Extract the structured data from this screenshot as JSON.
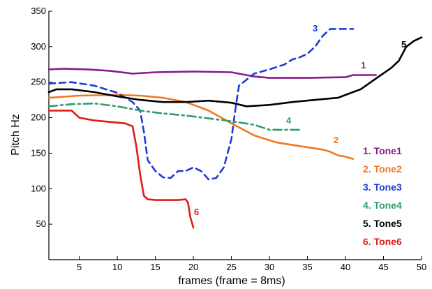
{
  "chart_data": {
    "type": "line",
    "xlabel": "frames (frame = 8ms)",
    "ylabel": "Pitch Hz",
    "xlim": [
      1,
      50
    ],
    "ylim": [
      0,
      350
    ],
    "x_ticks": [
      5,
      10,
      15,
      20,
      25,
      30,
      35,
      40,
      45,
      50
    ],
    "y_ticks": [
      50,
      100,
      150,
      200,
      250,
      300,
      350
    ],
    "legend_position": "right",
    "grid": false,
    "series": [
      {
        "name": "1. Tone1",
        "label": "1",
        "color": "#8B1A89",
        "dash": "solid",
        "x": [
          1,
          3,
          6,
          9,
          12,
          15,
          20,
          25,
          28,
          30,
          35,
          40,
          41,
          42,
          44
        ],
        "y": [
          268,
          269,
          268,
          266,
          262,
          264,
          265,
          264,
          258,
          256,
          256,
          257,
          260,
          260,
          260
        ]
      },
      {
        "name": "2. Tone2",
        "label": "2",
        "color": "#F07820",
        "dash": "solid",
        "x": [
          1,
          5,
          10,
          13,
          16,
          19,
          22,
          25,
          28,
          31,
          34,
          37,
          38,
          39,
          40,
          41
        ],
        "y": [
          228,
          231,
          232,
          231,
          228,
          222,
          210,
          192,
          175,
          165,
          160,
          155,
          152,
          147,
          145,
          142
        ]
      },
      {
        "name": "3. Tone3",
        "label": "3",
        "color": "#1F3BD6",
        "dash": "dashed",
        "x": [
          1,
          4,
          7,
          10,
          12,
          13,
          13.5,
          14,
          15,
          16,
          17,
          18,
          19,
          20,
          21,
          22,
          23,
          24,
          25,
          25.5,
          26,
          28,
          30,
          32,
          33,
          34,
          35,
          36,
          37,
          38,
          40,
          41
        ],
        "y": [
          248,
          250,
          245,
          235,
          222,
          210,
          180,
          140,
          125,
          116,
          115,
          125,
          125,
          130,
          125,
          113,
          115,
          130,
          170,
          210,
          245,
          262,
          268,
          275,
          282,
          285,
          290,
          300,
          315,
          325,
          325,
          325
        ]
      },
      {
        "name": "4. Tone4",
        "label": "4",
        "color": "#2E9E6A",
        "dash": "dashdot",
        "x": [
          1,
          4,
          7,
          10,
          13,
          16,
          19,
          22,
          25,
          28,
          30,
          32,
          34
        ],
        "y": [
          216,
          219,
          220,
          216,
          210,
          206,
          203,
          199,
          195,
          190,
          183,
          183,
          183
        ]
      },
      {
        "name": "5. Tone5",
        "label": "5",
        "color": "#000000",
        "dash": "solid",
        "x": [
          1,
          2,
          4,
          7,
          10,
          13,
          16,
          19,
          22,
          25,
          27,
          30,
          33,
          36,
          39,
          40,
          42,
          44,
          46,
          47,
          48,
          49,
          50
        ],
        "y": [
          236,
          240,
          240,
          236,
          230,
          225,
          222,
          222,
          224,
          221,
          216,
          218,
          222,
          225,
          228,
          232,
          240,
          255,
          270,
          280,
          300,
          308,
          313
        ]
      },
      {
        "name": "6. Tone6",
        "label": "6",
        "color": "#E11B17",
        "dash": "solid",
        "x": [
          1,
          3,
          4,
          5,
          7,
          10,
          11,
          12,
          12.5,
          13,
          13.5,
          14,
          15,
          16,
          17,
          18,
          19,
          19.3,
          19.6,
          20
        ],
        "y": [
          210,
          210,
          210,
          200,
          196,
          193,
          192,
          188,
          160,
          120,
          90,
          85,
          84,
          84,
          84,
          84,
          85,
          80,
          60,
          45
        ]
      }
    ]
  }
}
